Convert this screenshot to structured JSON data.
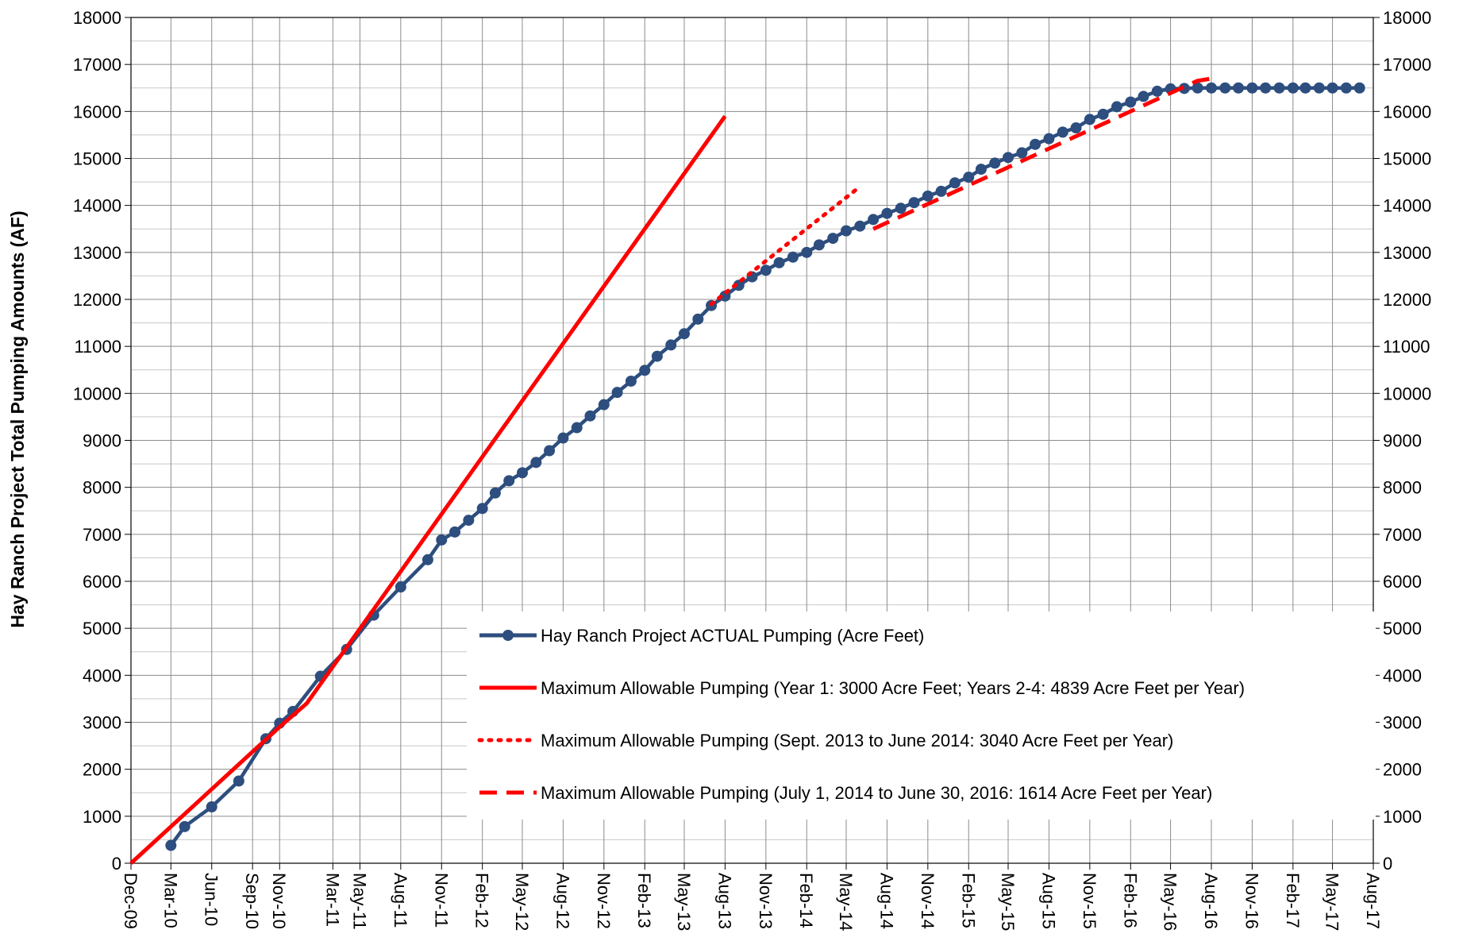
{
  "chart_data": {
    "type": "line",
    "title": "",
    "xlabel": "",
    "ylabel": "Hay Ranch Project Total Pumping Amounts (AF)",
    "ylim": [
      0,
      18000
    ],
    "yticks": [
      "0",
      "1000",
      "2000",
      "3000",
      "4000",
      "5000",
      "6000",
      "7000",
      "8000",
      "9000",
      "10000",
      "11000",
      "12000",
      "13000",
      "14000",
      "15000",
      "16000",
      "17000",
      "18000"
    ],
    "xlim": [
      "2009-12-01",
      "2017-08-01"
    ],
    "xticks": [
      {
        "date": "2009-12-01",
        "label": "Dec-09"
      },
      {
        "date": "2010-03-01",
        "label": "Mar-10"
      },
      {
        "date": "2010-06-01",
        "label": "Jun-10"
      },
      {
        "date": "2010-09-01",
        "label": "Sep-10"
      },
      {
        "date": "2010-11-01",
        "label": "Nov-10"
      },
      {
        "date": "2011-03-01",
        "label": "Mar-11"
      },
      {
        "date": "2011-05-01",
        "label": "May-11"
      },
      {
        "date": "2011-08-01",
        "label": "Aug-11"
      },
      {
        "date": "2011-11-01",
        "label": "Nov-11"
      },
      {
        "date": "2012-02-01",
        "label": "Feb-12"
      },
      {
        "date": "2012-05-01",
        "label": "May-12"
      },
      {
        "date": "2012-08-01",
        "label": "Aug-12"
      },
      {
        "date": "2012-11-01",
        "label": "Nov-12"
      },
      {
        "date": "2013-02-01",
        "label": "Feb-13"
      },
      {
        "date": "2013-05-01",
        "label": "May-13"
      },
      {
        "date": "2013-08-01",
        "label": "Aug-13"
      },
      {
        "date": "2013-11-01",
        "label": "Nov-13"
      },
      {
        "date": "2014-02-01",
        "label": "Feb-14"
      },
      {
        "date": "2014-05-01",
        "label": "May-14"
      },
      {
        "date": "2014-08-01",
        "label": "Aug-14"
      },
      {
        "date": "2014-11-01",
        "label": "Nov-14"
      },
      {
        "date": "2015-02-01",
        "label": "Feb-15"
      },
      {
        "date": "2015-05-01",
        "label": "May-15"
      },
      {
        "date": "2015-08-01",
        "label": "Aug-15"
      },
      {
        "date": "2015-11-01",
        "label": "Nov-15"
      },
      {
        "date": "2016-02-01",
        "label": "Feb-16"
      },
      {
        "date": "2016-05-01",
        "label": "May-16"
      },
      {
        "date": "2016-08-01",
        "label": "Aug-16"
      },
      {
        "date": "2016-11-01",
        "label": "Nov-16"
      },
      {
        "date": "2017-02-01",
        "label": "Feb-17"
      },
      {
        "date": "2017-05-01",
        "label": "May-17"
      },
      {
        "date": "2017-08-01",
        "label": "Aug-17"
      }
    ],
    "grid": true,
    "legend_position": "bottom-right",
    "series": [
      {
        "name": "Hay Ranch Project ACTUAL Pumping (Acre Feet)",
        "color": "#2d4e7e",
        "style": "line-markers",
        "points": [
          [
            "2010-03-01",
            380
          ],
          [
            "2010-04-01",
            780
          ],
          [
            "2010-06-01",
            1200
          ],
          [
            "2010-08-01",
            1750
          ],
          [
            "2010-10-01",
            2650
          ],
          [
            "2010-11-01",
            2980
          ],
          [
            "2010-12-01",
            3230
          ],
          [
            "2011-02-01",
            3980
          ],
          [
            "2011-04-01",
            4550
          ],
          [
            "2011-06-01",
            5280
          ],
          [
            "2011-08-01",
            5880
          ],
          [
            "2011-10-01",
            6460
          ],
          [
            "2011-11-01",
            6880
          ],
          [
            "2011-12-01",
            7050
          ],
          [
            "2012-01-01",
            7300
          ],
          [
            "2012-02-01",
            7550
          ],
          [
            "2012-03-01",
            7880
          ],
          [
            "2012-04-01",
            8140
          ],
          [
            "2012-05-01",
            8310
          ],
          [
            "2012-06-01",
            8530
          ],
          [
            "2012-07-01",
            8780
          ],
          [
            "2012-08-01",
            9050
          ],
          [
            "2012-09-01",
            9270
          ],
          [
            "2012-10-01",
            9520
          ],
          [
            "2012-11-01",
            9760
          ],
          [
            "2012-12-01",
            10020
          ],
          [
            "2013-01-01",
            10260
          ],
          [
            "2013-02-01",
            10490
          ],
          [
            "2013-03-01",
            10790
          ],
          [
            "2013-04-01",
            11030
          ],
          [
            "2013-05-01",
            11270
          ],
          [
            "2013-06-01",
            11580
          ],
          [
            "2013-07-01",
            11870
          ],
          [
            "2013-08-01",
            12070
          ],
          [
            "2013-09-01",
            12300
          ],
          [
            "2013-10-01",
            12480
          ],
          [
            "2013-11-01",
            12620
          ],
          [
            "2013-12-01",
            12780
          ],
          [
            "2014-01-01",
            12900
          ],
          [
            "2014-02-01",
            13000
          ],
          [
            "2014-03-01",
            13160
          ],
          [
            "2014-04-01",
            13300
          ],
          [
            "2014-05-01",
            13460
          ],
          [
            "2014-06-01",
            13560
          ],
          [
            "2014-07-01",
            13700
          ],
          [
            "2014-08-01",
            13830
          ],
          [
            "2014-09-01",
            13940
          ],
          [
            "2014-10-01",
            14060
          ],
          [
            "2014-11-01",
            14200
          ],
          [
            "2014-12-01",
            14300
          ],
          [
            "2015-01-01",
            14480
          ],
          [
            "2015-02-01",
            14600
          ],
          [
            "2015-03-01",
            14770
          ],
          [
            "2015-04-01",
            14900
          ],
          [
            "2015-05-01",
            15020
          ],
          [
            "2015-06-01",
            15120
          ],
          [
            "2015-07-01",
            15300
          ],
          [
            "2015-08-01",
            15420
          ],
          [
            "2015-09-01",
            15560
          ],
          [
            "2015-10-01",
            15650
          ],
          [
            "2015-11-01",
            15830
          ],
          [
            "2015-12-01",
            15940
          ],
          [
            "2016-01-01",
            16100
          ],
          [
            "2016-02-01",
            16200
          ],
          [
            "2016-03-01",
            16320
          ],
          [
            "2016-04-01",
            16430
          ],
          [
            "2016-05-01",
            16480
          ],
          [
            "2016-06-01",
            16490
          ],
          [
            "2016-07-01",
            16500
          ],
          [
            "2016-08-01",
            16500
          ],
          [
            "2016-09-01",
            16500
          ],
          [
            "2016-10-01",
            16500
          ],
          [
            "2016-11-01",
            16500
          ],
          [
            "2016-12-01",
            16500
          ],
          [
            "2017-01-01",
            16500
          ],
          [
            "2017-02-01",
            16500
          ],
          [
            "2017-03-01",
            16500
          ],
          [
            "2017-04-01",
            16500
          ],
          [
            "2017-05-01",
            16500
          ],
          [
            "2017-06-01",
            16500
          ],
          [
            "2017-07-01",
            16500
          ]
        ]
      },
      {
        "name": "Maximum Allowable Pumping (Year 1: 3000 Acre Feet; Years 2-4: 4839 Acre Feet per Year)",
        "color": "#ff0000",
        "style": "solid",
        "points": [
          [
            "2009-12-01",
            0
          ],
          [
            "2010-11-01",
            2900
          ],
          [
            "2011-01-01",
            3400
          ],
          [
            "2013-08-01",
            15900
          ]
        ]
      },
      {
        "name": "Maximum Allowable Pumping (Sept. 2013 to June 2014: 3040 Acre Feet per Year)",
        "color": "#ff0000",
        "style": "dotted",
        "points": [
          [
            "2013-07-01",
            11900
          ],
          [
            "2014-06-01",
            14400
          ]
        ]
      },
      {
        "name": "Maximum Allowable Pumping (July 1, 2014 to June 30, 2016: 1614 Acre Feet per Year)",
        "color": "#ff0000",
        "style": "dashed",
        "points": [
          [
            "2014-07-01",
            13500
          ],
          [
            "2016-06-30",
            16650
          ],
          [
            "2016-08-01",
            16700
          ]
        ]
      }
    ]
  }
}
